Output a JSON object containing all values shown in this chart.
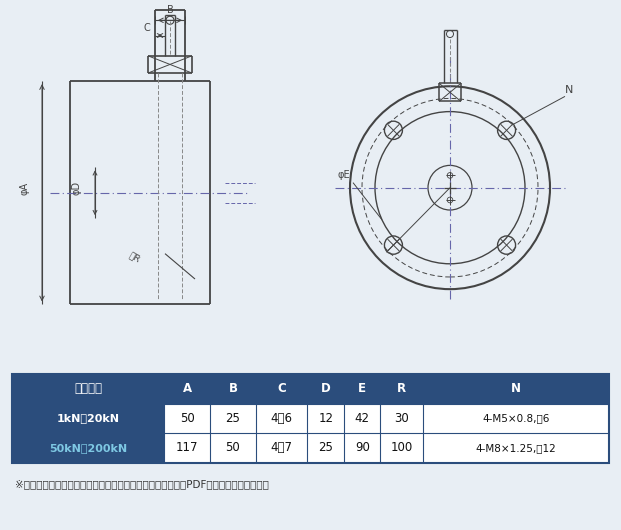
{
  "bg_color": "#e8eef4",
  "drawing_bg": "#ffffff",
  "table_header_bg": "#2b4d7c",
  "table_border": "#2b4d7c",
  "line_color": "#444444",
  "centerline_color": "#6666aa",
  "note_text": "※上記の「定格容量」の容量をクリックして頂くと容量別にPDFで図が表示されます。",
  "col_headers": [
    "定格容量",
    "A",
    "B",
    "C",
    "D",
    "E",
    "R",
    "N"
  ],
  "row1_label": "1kN～20kN",
  "row1_values": [
    "50",
    "25",
    "4～6",
    "12",
    "42",
    "30",
    "4-M5×0.8,淵6"
  ],
  "row2_label": "50kN～200kN",
  "row2_values": [
    "117",
    "50",
    "4～7",
    "25",
    "90",
    "100",
    "4-M8×1.25,淵12"
  ]
}
